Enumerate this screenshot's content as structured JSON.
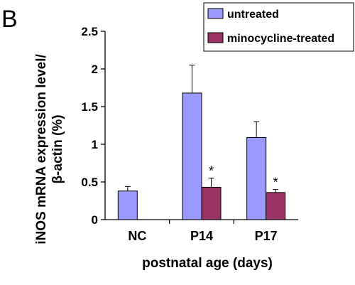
{
  "panel_label": "B",
  "chart_data": {
    "type": "bar",
    "categories": [
      "NC",
      "P14",
      "P17"
    ],
    "series": [
      {
        "name": "untreated",
        "color": "#9999ff",
        "values": [
          0.38,
          1.68,
          1.09
        ],
        "errors": [
          0.06,
          0.37,
          0.21
        ],
        "significance": [
          "",
          "",
          ""
        ]
      },
      {
        "name": "minocycline-treated",
        "color": "#993366",
        "values": [
          null,
          0.43,
          0.36
        ],
        "errors": [
          null,
          0.12,
          0.04
        ],
        "significance": [
          "",
          "*",
          "*"
        ]
      }
    ],
    "yticks": [
      "0",
      "0.5",
      "1",
      "1.5",
      "2",
      "2.5"
    ],
    "ylim": [
      0,
      2.5
    ],
    "xlabel": "postnatal age (days)",
    "ylabel_lines": [
      "iNOS mRNA expression level/",
      "β-actin (%)"
    ],
    "legend_position": "top-right",
    "grid": false
  }
}
